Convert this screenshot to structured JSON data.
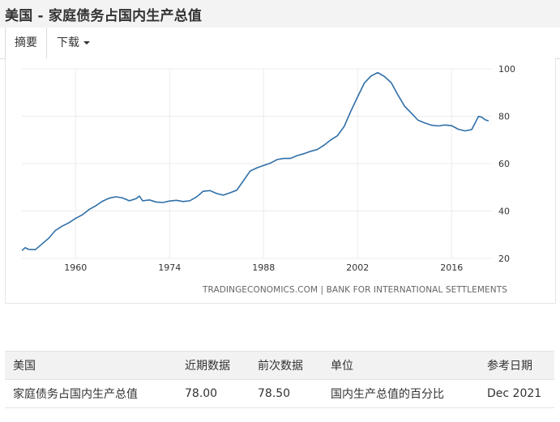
{
  "page": {
    "title": "美国 - 家庭债务占国内生产总值"
  },
  "tabs": [
    {
      "label": "摘要",
      "active": true
    },
    {
      "label": "下载",
      "active": false
    }
  ],
  "chart_data": {
    "type": "line",
    "title": "",
    "xlabel": "",
    "ylabel": "",
    "x_ticks": [
      "1960",
      "1974",
      "1988",
      "2002",
      "2016"
    ],
    "y_ticks": [
      "20",
      "40",
      "60",
      "80",
      "100"
    ],
    "ylim": [
      20,
      100
    ],
    "xlim": [
      1952,
      2022
    ],
    "grid": true,
    "color": "#2f6fa8",
    "credits": "TRADINGECONOMICS.COM | BANK FOR INTERNATIONAL SETTLEMENTS",
    "series": [
      {
        "x": [
          1952.0,
          1952.5,
          1953.0,
          1954.0,
          1955.0,
          1956.0,
          1957.0,
          1958.0,
          1959.0,
          1960.0,
          1961.0,
          1962.0,
          1963.0,
          1964.0,
          1965.0,
          1966.0,
          1967.0,
          1968.0,
          1969.0,
          1969.5,
          1970.0,
          1971.0,
          1972.0,
          1973.0,
          1974.0,
          1975.0,
          1976.0,
          1977.0,
          1978.0,
          1979.0,
          1980.0,
          1981.0,
          1982.0,
          1983.0,
          1984.0,
          1985.0,
          1986.0,
          1987.0,
          1988.0,
          1989.0,
          1990.0,
          1991.0,
          1992.0,
          1993.0,
          1994.0,
          1995.0,
          1996.0,
          1997.0,
          1998.0,
          1999.0,
          2000.0,
          2001.0,
          2002.0,
          2003.0,
          2004.0,
          2005.0,
          2006.0,
          2007.0,
          2008.0,
          2009.0,
          2010.0,
          2011.0,
          2012.0,
          2013.0,
          2014.0,
          2015.0,
          2016.0,
          2017.0,
          2018.0,
          2019.0,
          2020.0,
          2020.5,
          2021.0,
          2021.5
        ],
        "y": [
          23.3,
          24.5,
          23.8,
          23.7,
          26.1,
          28.5,
          31.8,
          33.6,
          35.0,
          36.9,
          38.4,
          40.6,
          42.2,
          44.1,
          45.4,
          46.0,
          45.5,
          44.3,
          45.2,
          46.3,
          44.3,
          44.7,
          43.8,
          43.6,
          44.2,
          44.5,
          44.0,
          44.3,
          45.9,
          48.3,
          48.6,
          47.4,
          46.7,
          47.7,
          48.8,
          52.8,
          56.9,
          58.2,
          59.2,
          60.2,
          61.7,
          62.2,
          62.2,
          63.4,
          64.2,
          65.2,
          66.0,
          67.8,
          70.0,
          71.8,
          75.7,
          82.2,
          88.2,
          94.0,
          97.0,
          98.4,
          96.8,
          94.2,
          89.0,
          84.2,
          81.3,
          78.3,
          77.2,
          76.2,
          75.9,
          76.3,
          76.0,
          74.5,
          73.8,
          74.4,
          79.9,
          79.6,
          78.5,
          78.0
        ]
      }
    ]
  },
  "table": {
    "headers": [
      "美国",
      "近期数据",
      "前次数据",
      "单位",
      "参考日期"
    ],
    "rows": [
      [
        "家庭债务占国内生产总值",
        "78.00",
        "78.50",
        "国内生产总值的百分比",
        "Dec 2021"
      ]
    ]
  }
}
